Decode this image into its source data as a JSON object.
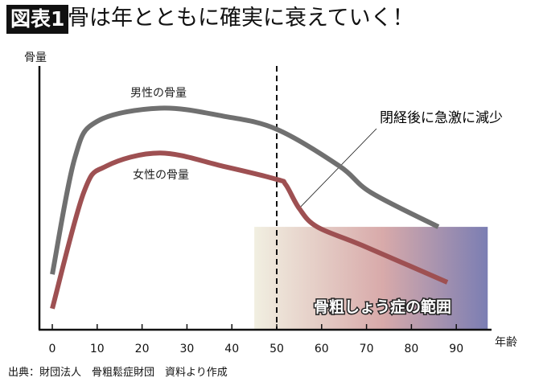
{
  "header": {
    "badge": "図表1",
    "title": "骨は年とともに確実に衰えていく！"
  },
  "source": "出典：財団法人　骨粗鬆症財団　資料より作成",
  "chart_data": {
    "type": "line",
    "title": "骨は年とともに確実に衰えていく！",
    "xlabel": "年齢",
    "ylabel": "骨量",
    "xlim": [
      -3,
      98
    ],
    "ylim": [
      0,
      100
    ],
    "x_ticks": [
      0,
      10,
      20,
      30,
      40,
      50,
      60,
      70,
      80,
      90
    ],
    "grid": false,
    "series": [
      {
        "name": "男性の骨量",
        "color": "#707070",
        "points": [
          [
            0,
            21
          ],
          [
            5,
            65
          ],
          [
            10,
            79
          ],
          [
            24,
            84
          ],
          [
            38,
            81
          ],
          [
            50,
            76
          ],
          [
            64,
            62
          ],
          [
            71,
            52
          ],
          [
            86,
            39
          ]
        ]
      },
      {
        "name": "女性の骨量",
        "color": "#9e5052",
        "points": [
          [
            0,
            8
          ],
          [
            7,
            52
          ],
          [
            12,
            62
          ],
          [
            24,
            67
          ],
          [
            38,
            62
          ],
          [
            50,
            57
          ],
          [
            52,
            55
          ],
          [
            55,
            46
          ],
          [
            59,
            39
          ],
          [
            69,
            32
          ],
          [
            88,
            18
          ]
        ]
      }
    ],
    "reference_line": {
      "x": 50,
      "style": "dashed"
    },
    "annotation": {
      "text": "閉経後に急激に減少",
      "target_x": 55
    },
    "region": {
      "label": "骨粗しょう症の範囲",
      "x_range": [
        45,
        97
      ],
      "y_range": [
        0,
        39
      ],
      "colors": [
        "#f1efe1",
        "#d8aaaa",
        "#7b7eb3"
      ]
    }
  }
}
